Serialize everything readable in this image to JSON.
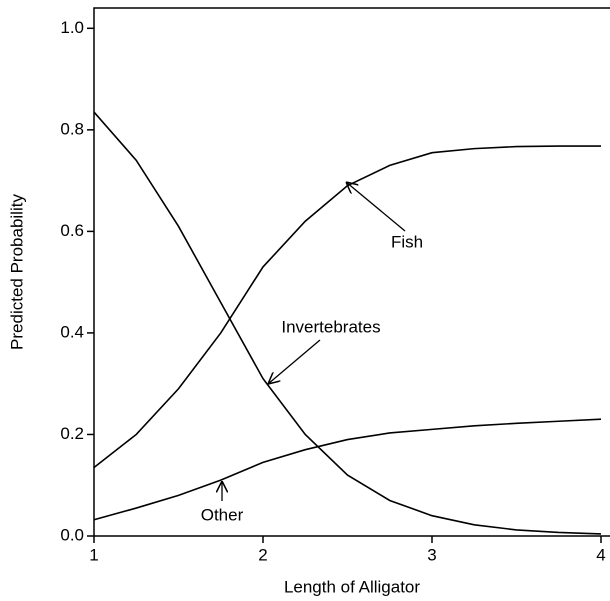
{
  "chart_data": {
    "type": "line",
    "x_label": "Length of Alligator",
    "y_label": "Predicted Probability",
    "x": [
      1,
      1.25,
      1.5,
      1.75,
      2,
      2.25,
      2.5,
      2.75,
      3,
      3.25,
      3.5,
      3.75,
      4
    ],
    "series": [
      {
        "name": "Fish",
        "color": "#000000",
        "values": [
          0.135,
          0.2,
          0.29,
          0.4,
          0.53,
          0.62,
          0.69,
          0.73,
          0.755,
          0.763,
          0.767,
          0.768,
          0.768
        ]
      },
      {
        "name": "Invertebrates",
        "color": "#000000",
        "values": [
          0.835,
          0.74,
          0.61,
          0.46,
          0.31,
          0.2,
          0.12,
          0.07,
          0.04,
          0.022,
          0.012,
          0.007,
          0.004
        ]
      },
      {
        "name": "Other",
        "color": "#000000",
        "values": [
          0.032,
          0.055,
          0.08,
          0.11,
          0.145,
          0.17,
          0.19,
          0.203,
          0.21,
          0.217,
          0.222,
          0.226,
          0.23
        ]
      }
    ],
    "xlim": [
      1,
      4.05
    ],
    "ylim": [
      0,
      1.04
    ],
    "xticks": [
      1,
      2,
      3,
      4
    ],
    "yticks": [
      {
        "value": 0,
        "label": "0.0"
      },
      {
        "value": 0.2,
        "label": "0.2"
      },
      {
        "value": 0.4,
        "label": "0.4"
      },
      {
        "value": 0.6,
        "label": "0.6"
      },
      {
        "value": 0.8,
        "label": "0.8"
      },
      {
        "value": 1,
        "label": "1.0"
      }
    ]
  }
}
